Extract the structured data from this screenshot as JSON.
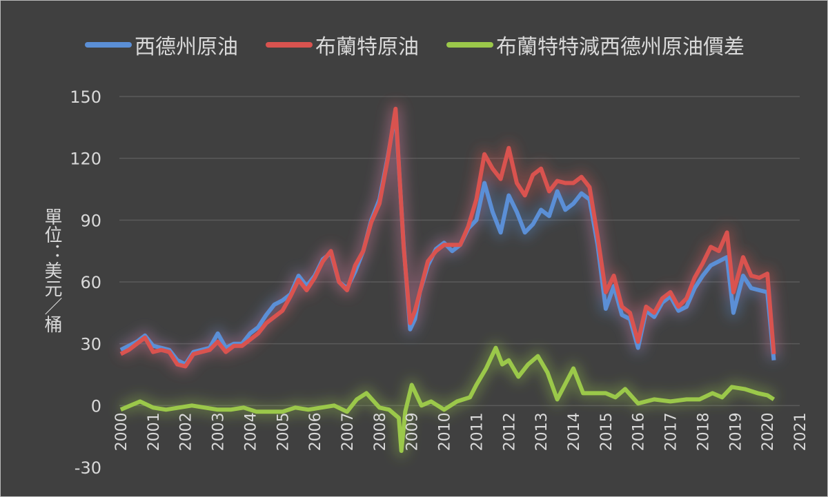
{
  "chart_data": {
    "type": "line",
    "ylabel": "單位：美元／桶",
    "ylim": [
      -30,
      150
    ],
    "yticks": [
      150,
      120,
      90,
      60,
      30,
      0,
      -30
    ],
    "xlim": [
      2000,
      2021
    ],
    "xticks": [
      "2000",
      "2001",
      "2002",
      "2003",
      "2004",
      "2005",
      "2006",
      "2007",
      "2008",
      "2009",
      "2010",
      "2011",
      "2012",
      "2013",
      "2014",
      "2015",
      "2016",
      "2017",
      "2018",
      "2019",
      "2020",
      "2021"
    ],
    "grid": true,
    "legend_position": "top",
    "series": [
      {
        "name": "西德州原油",
        "color": "#5b8fd6",
        "x": [
          2000,
          2000.25,
          2000.5,
          2000.75,
          2001,
          2001.25,
          2001.5,
          2001.75,
          2002,
          2002.25,
          2002.5,
          2002.75,
          2003,
          2003.25,
          2003.5,
          2003.75,
          2004,
          2004.25,
          2004.5,
          2004.75,
          2005,
          2005.25,
          2005.5,
          2005.75,
          2006,
          2006.25,
          2006.5,
          2006.75,
          2007,
          2007.25,
          2007.5,
          2007.75,
          2008,
          2008.25,
          2008.5,
          2008.75,
          2008.95,
          2009.1,
          2009.25,
          2009.5,
          2009.75,
          2010,
          2010.25,
          2010.5,
          2010.75,
          2011,
          2011.25,
          2011.5,
          2011.75,
          2012,
          2012.25,
          2012.5,
          2012.75,
          2013,
          2013.25,
          2013.5,
          2013.75,
          2014,
          2014.25,
          2014.5,
          2014.75,
          2015,
          2015.25,
          2015.5,
          2015.75,
          2016,
          2016.25,
          2016.5,
          2016.75,
          2017,
          2017.25,
          2017.5,
          2017.75,
          2018,
          2018.25,
          2018.5,
          2018.75,
          2018.95,
          2019.25,
          2019.5,
          2019.75,
          2020,
          2020.2
        ],
        "y": [
          27,
          29,
          31,
          34,
          29,
          28,
          27,
          22,
          20,
          26,
          27,
          28,
          35,
          28,
          30,
          30,
          35,
          38,
          44,
          49,
          51,
          54,
          63,
          58,
          63,
          71,
          74,
          60,
          57,
          65,
          75,
          90,
          100,
          120,
          142,
          78,
          37,
          42,
          55,
          68,
          76,
          79,
          75,
          78,
          86,
          90,
          108,
          94,
          84,
          102,
          94,
          84,
          88,
          95,
          92,
          104,
          95,
          98,
          103,
          100,
          78,
          47,
          58,
          44,
          42,
          28,
          46,
          43,
          50,
          53,
          46,
          48,
          57,
          63,
          68,
          70,
          72,
          45,
          63,
          57,
          56,
          55,
          22
        ]
      },
      {
        "name": "布蘭特原油",
        "color": "#d9534f",
        "x": [
          2000,
          2000.25,
          2000.5,
          2000.75,
          2001,
          2001.25,
          2001.5,
          2001.75,
          2002,
          2002.25,
          2002.5,
          2002.75,
          2003,
          2003.25,
          2003.5,
          2003.75,
          2004,
          2004.25,
          2004.5,
          2004.75,
          2005,
          2005.25,
          2005.5,
          2005.75,
          2006,
          2006.25,
          2006.5,
          2006.75,
          2007,
          2007.25,
          2007.5,
          2007.75,
          2008,
          2008.25,
          2008.5,
          2008.75,
          2008.95,
          2009.1,
          2009.25,
          2009.5,
          2009.75,
          2010,
          2010.25,
          2010.5,
          2010.75,
          2011,
          2011.25,
          2011.5,
          2011.75,
          2012,
          2012.25,
          2012.5,
          2012.75,
          2013,
          2013.25,
          2013.5,
          2013.75,
          2014,
          2014.25,
          2014.5,
          2014.75,
          2015,
          2015.25,
          2015.5,
          2015.75,
          2016,
          2016.25,
          2016.5,
          2016.75,
          2017,
          2017.25,
          2017.5,
          2017.75,
          2018,
          2018.25,
          2018.5,
          2018.75,
          2018.95,
          2019.25,
          2019.5,
          2019.75,
          2020,
          2020.2
        ],
        "y": [
          25,
          27,
          30,
          33,
          26,
          27,
          26,
          20,
          19,
          25,
          26,
          27,
          31,
          26,
          29,
          29,
          32,
          35,
          40,
          43,
          46,
          53,
          61,
          56,
          62,
          70,
          75,
          60,
          56,
          68,
          75,
          89,
          98,
          119,
          144,
          77,
          40,
          46,
          55,
          70,
          75,
          78,
          78,
          78,
          87,
          100,
          122,
          115,
          110,
          125,
          108,
          102,
          112,
          115,
          104,
          109,
          108,
          108,
          111,
          106,
          82,
          55,
          63,
          48,
          45,
          31,
          48,
          45,
          52,
          55,
          48,
          52,
          62,
          69,
          77,
          75,
          84,
          55,
          72,
          63,
          62,
          64,
          25
        ]
      },
      {
        "name": "布蘭特特減西德州原油價差",
        "color": "#9bc84a",
        "x": [
          2000,
          2000.3,
          2000.6,
          2001,
          2001.4,
          2001.8,
          2002.2,
          2002.6,
          2003,
          2003.4,
          2003.8,
          2004.2,
          2004.6,
          2005,
          2005.4,
          2005.8,
          2006.2,
          2006.6,
          2007,
          2007.3,
          2007.6,
          2008,
          2008.3,
          2008.6,
          2008.68,
          2008.8,
          2009.0,
          2009.3,
          2009.6,
          2010,
          2010.4,
          2010.8,
          2011,
          2011.3,
          2011.6,
          2011.8,
          2012,
          2012.3,
          2012.6,
          2012.9,
          2013.2,
          2013.5,
          2013.8,
          2014,
          2014.3,
          2014.6,
          2015,
          2015.3,
          2015.6,
          2016,
          2016.5,
          2017,
          2017.5,
          2017.9,
          2018.3,
          2018.6,
          2018.9,
          2019.3,
          2019.7,
          2020,
          2020.2
        ],
        "y": [
          -2,
          0,
          2,
          -1,
          -2,
          -1,
          0,
          -1,
          -2,
          -2,
          -1,
          -3,
          -3,
          -3,
          -1,
          -2,
          -1,
          0,
          -3,
          3,
          6,
          -1,
          -2,
          -6,
          -22,
          -3,
          10,
          0,
          2,
          -2,
          2,
          4,
          10,
          18,
          28,
          20,
          22,
          14,
          20,
          24,
          16,
          3,
          12,
          18,
          6,
          6,
          6,
          4,
          8,
          1,
          3,
          2,
          3,
          3,
          6,
          4,
          9,
          8,
          6,
          5,
          3
        ]
      }
    ]
  }
}
